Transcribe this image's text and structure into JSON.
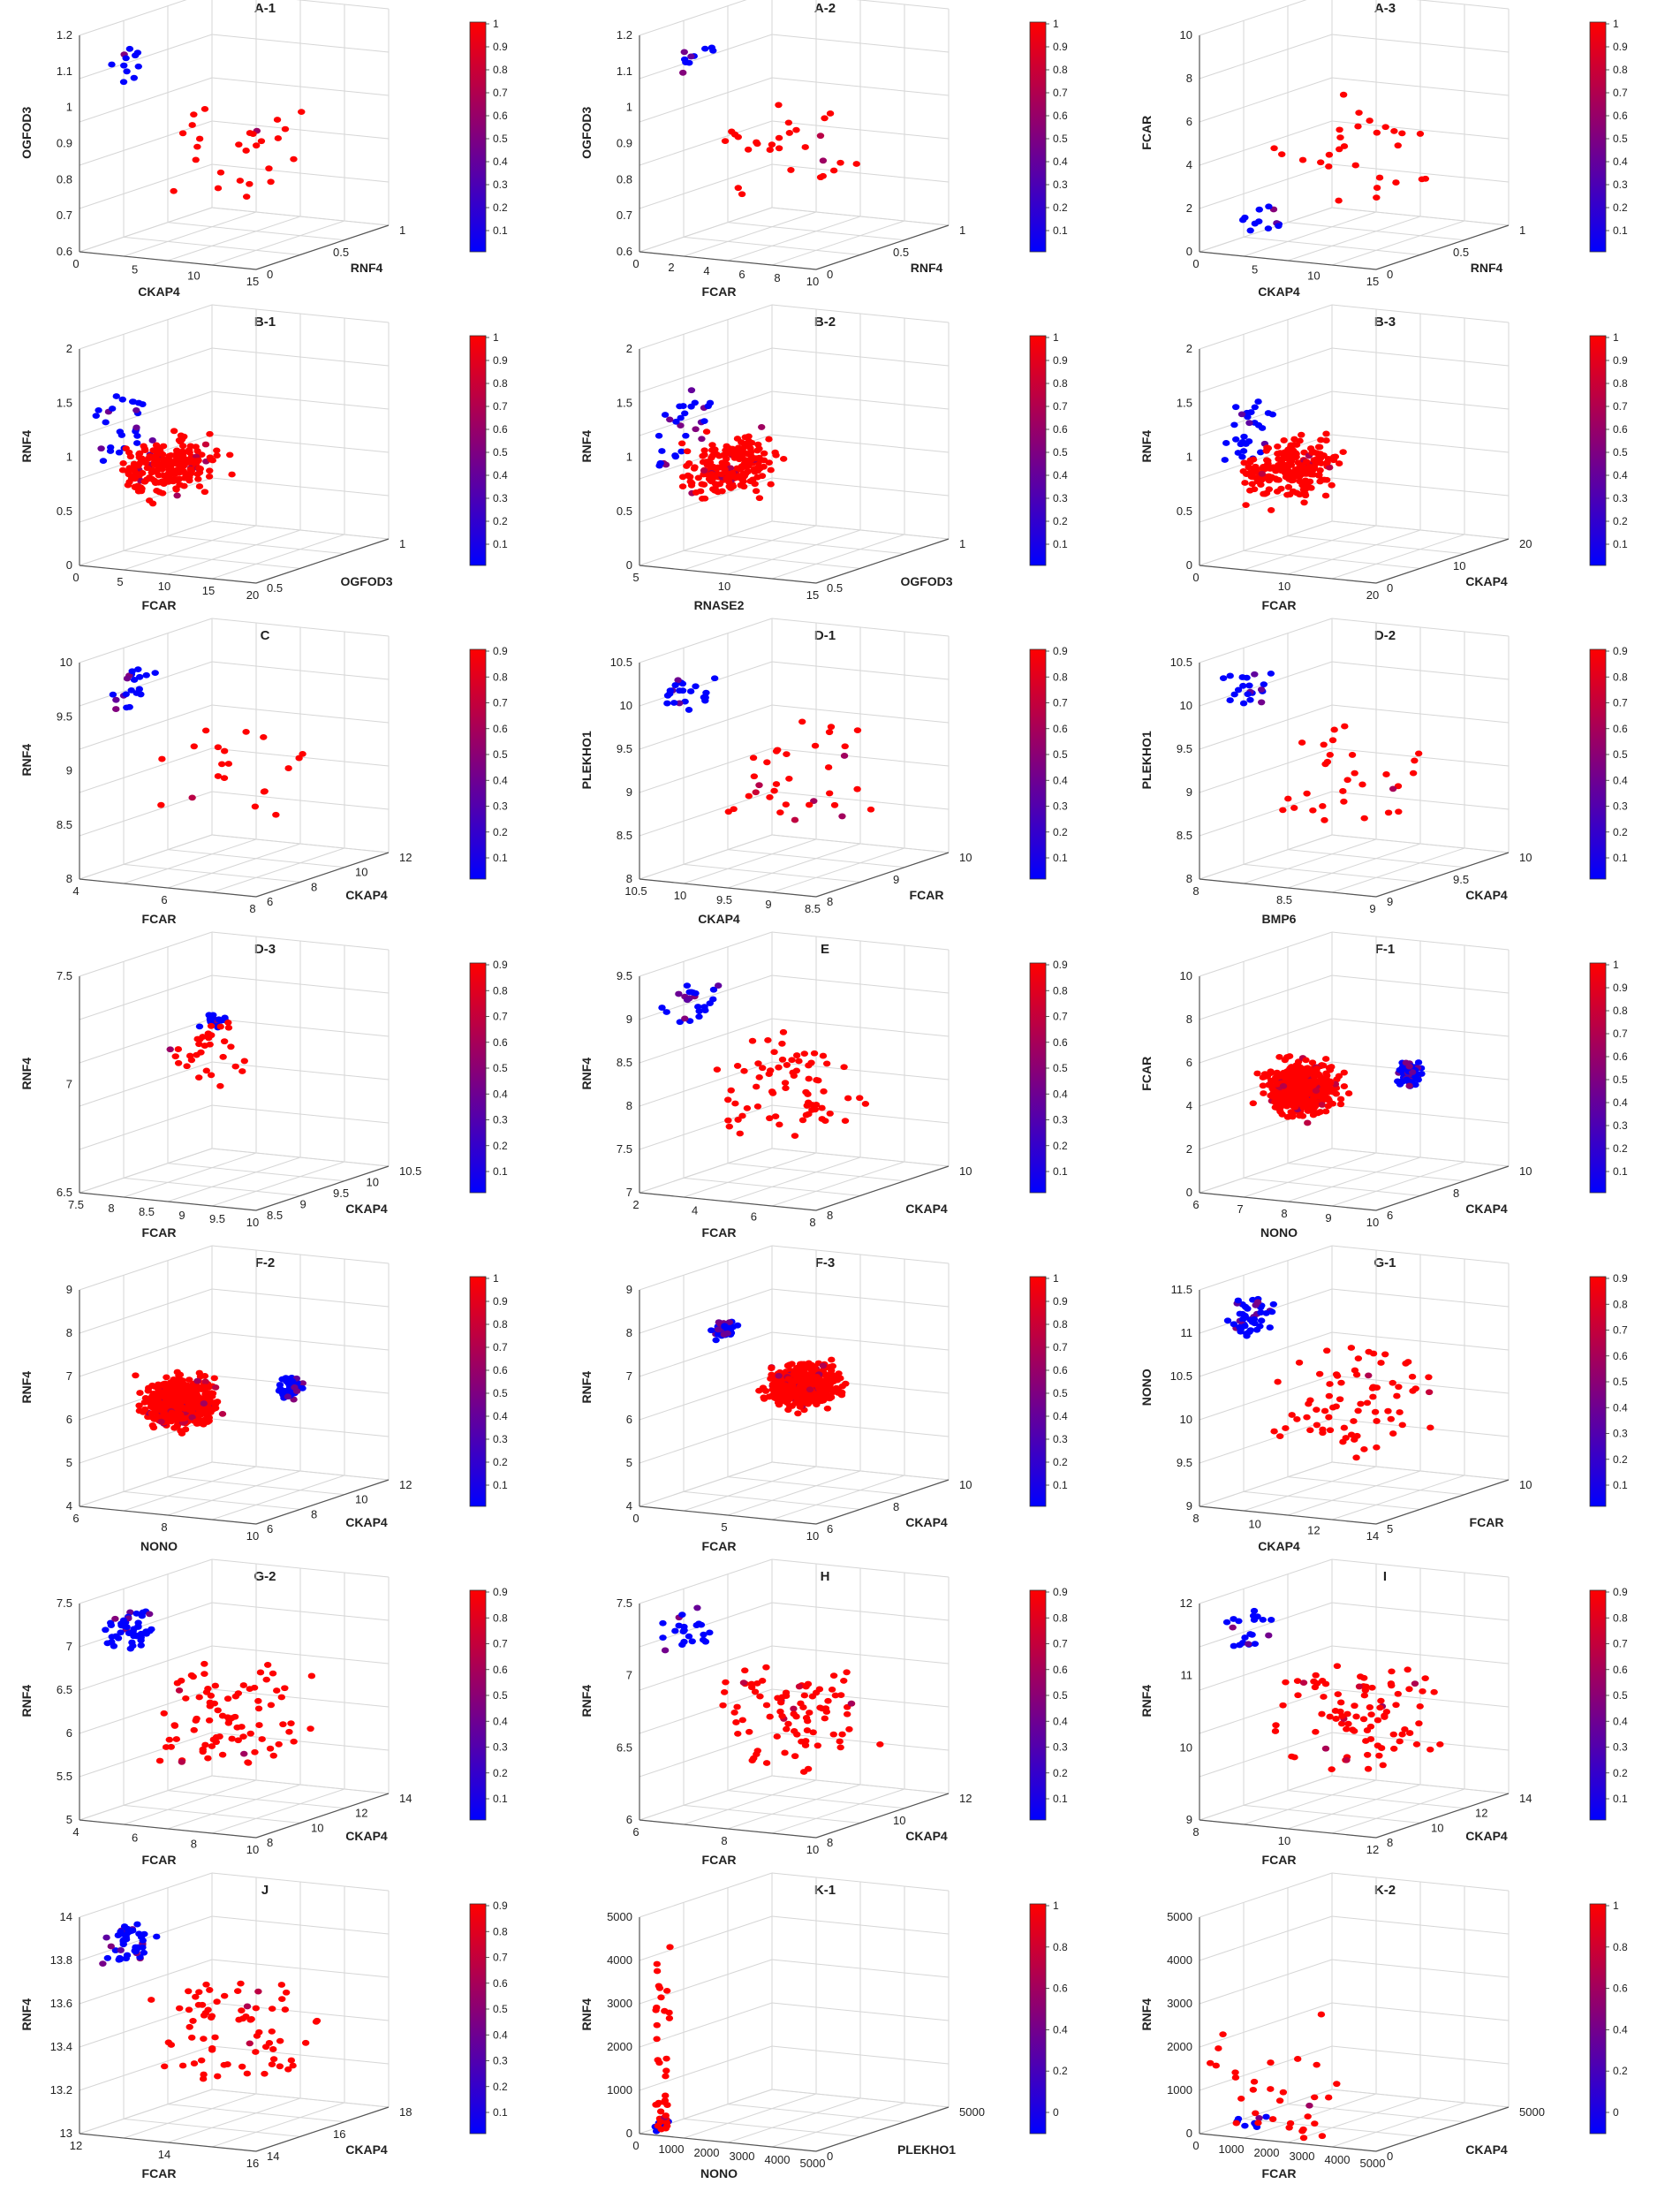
{
  "colors": {
    "low": "#0000ff",
    "high": "#ff0000",
    "grid": "#d6d6d6",
    "axis": "#555555"
  },
  "chart_data": [
    {
      "type": "scatter",
      "title": "A-1",
      "xlabel": "CKAP4",
      "ylabel": "RNF4",
      "zlabel": "OGFOD3",
      "orient": "normal",
      "xticks": [
        "0",
        "5",
        "10",
        "15"
      ],
      "yticks": [
        "0",
        "0.5",
        "1"
      ],
      "zticks": [
        "0.6",
        "0.7",
        "0.8",
        "0.9",
        "1",
        "1.1",
        "1.2"
      ],
      "cb_ticks": [
        "1",
        "0.9",
        "0.8",
        "0.7",
        "0.6",
        "0.5",
        "0.4",
        "0.3",
        "0.2",
        "0.1"
      ],
      "seed": 11,
      "n": 38,
      "blue_frac": 0.3,
      "pattern": "topleft"
    },
    {
      "type": "scatter",
      "title": "A-2",
      "xlabel": "FCAR",
      "ylabel": "RNF4",
      "zlabel": "OGFOD3",
      "orient": "normal",
      "xticks": [
        "0",
        "2",
        "4",
        "6",
        "8",
        "10"
      ],
      "yticks": [
        "0",
        "0.5",
        "1"
      ],
      "zticks": [
        "0.6",
        "0.7",
        "0.8",
        "0.9",
        "1",
        "1.1",
        "1.2"
      ],
      "cb_ticks": [
        "1",
        "0.9",
        "0.8",
        "0.7",
        "0.6",
        "0.5",
        "0.4",
        "0.3",
        "0.2",
        "0.1"
      ],
      "seed": 12,
      "n": 38,
      "blue_frac": 0.25,
      "pattern": "topleft"
    },
    {
      "type": "scatter",
      "title": "A-3",
      "xlabel": "CKAP4",
      "ylabel": "RNF4",
      "zlabel": "FCAR",
      "orient": "flip",
      "xticks": [
        "0",
        "5",
        "10",
        "15"
      ],
      "yticks": [
        "0",
        "0.5",
        "1"
      ],
      "zticks": [
        "0",
        "2",
        "4",
        "6",
        "8",
        "10"
      ],
      "cb_ticks": [
        "1",
        "0.9",
        "0.8",
        "0.7",
        "0.6",
        "0.5",
        "0.4",
        "0.3",
        "0.2",
        "0.1"
      ],
      "seed": 13,
      "n": 40,
      "blue_frac": 0.3,
      "pattern": "bottomleft"
    },
    {
      "type": "scatter",
      "title": "B-1",
      "xlabel": "FCAR",
      "ylabel": "OGFOD3",
      "zlabel": "RNF4",
      "orient": "flip",
      "xticks": [
        "0",
        "5",
        "10",
        "15",
        "20"
      ],
      "yticks": [
        "0.5",
        "1"
      ],
      "zticks": [
        "0",
        "0.5",
        "1",
        "1.5",
        "2"
      ],
      "cb_ticks": [
        "1",
        "0.9",
        "0.8",
        "0.7",
        "0.6",
        "0.5",
        "0.4",
        "0.3",
        "0.2",
        "0.1"
      ],
      "seed": 21,
      "n": 230,
      "blue_frac": 0.12,
      "pattern": "cloud"
    },
    {
      "type": "scatter",
      "title": "B-2",
      "xlabel": "RNASE2",
      "ylabel": "OGFOD3",
      "zlabel": "RNF4",
      "orient": "normal",
      "xticks": [
        "5",
        "10",
        "15"
      ],
      "yticks": [
        "0.5",
        "1"
      ],
      "zticks": [
        "0",
        "0.5",
        "1",
        "1.5",
        "2"
      ],
      "cb_ticks": [
        "1",
        "0.9",
        "0.8",
        "0.7",
        "0.6",
        "0.5",
        "0.4",
        "0.3",
        "0.2",
        "0.1"
      ],
      "seed": 22,
      "n": 230,
      "blue_frac": 0.12,
      "pattern": "cloud"
    },
    {
      "type": "scatter",
      "title": "B-3",
      "xlabel": "FCAR",
      "ylabel": "CKAP4",
      "zlabel": "RNF4",
      "orient": "normal",
      "xticks": [
        "0",
        "10",
        "20"
      ],
      "yticks": [
        "0",
        "10",
        "20"
      ],
      "zticks": [
        "0",
        "0.5",
        "1",
        "1.5",
        "2"
      ],
      "cb_ticks": [
        "1",
        "0.9",
        "0.8",
        "0.7",
        "0.6",
        "0.5",
        "0.4",
        "0.3",
        "0.2",
        "0.1"
      ],
      "seed": 23,
      "n": 230,
      "blue_frac": 0.12,
      "pattern": "cloud"
    },
    {
      "type": "scatter",
      "title": "C",
      "xlabel": "FCAR",
      "ylabel": "CKAP4",
      "zlabel": "RNF4",
      "orient": "normal",
      "xticks": [
        "4",
        "6",
        "8"
      ],
      "yticks": [
        "6",
        "8",
        "10",
        "12"
      ],
      "zticks": [
        "8",
        "8.5",
        "9",
        "9.5",
        "10"
      ],
      "cb_ticks": [
        "0.9",
        "0.8",
        "0.7",
        "0.6",
        "0.5",
        "0.4",
        "0.3",
        "0.2",
        "0.1"
      ],
      "seed": 31,
      "n": 40,
      "blue_frac": 0.5,
      "pattern": "topleft"
    },
    {
      "type": "scatter",
      "title": "D-1",
      "xlabel": "CKAP4",
      "ylabel": "FCAR",
      "zlabel": "PLEKHO1",
      "orient": "normal",
      "xticks": [
        "10.5",
        "10",
        "9.5",
        "9",
        "8.5"
      ],
      "yticks": [
        "8",
        "9",
        "10"
      ],
      "zticks": [
        "8",
        "8.5",
        "9",
        "9.5",
        "10",
        "10.5"
      ],
      "cb_ticks": [
        "0.9",
        "0.8",
        "0.7",
        "0.6",
        "0.5",
        "0.4",
        "0.3",
        "0.2",
        "0.1"
      ],
      "seed": 32,
      "n": 55,
      "blue_frac": 0.4,
      "pattern": "topleft"
    },
    {
      "type": "scatter",
      "title": "D-2",
      "xlabel": "BMP6",
      "ylabel": "CKAP4",
      "zlabel": "PLEKHO1",
      "orient": "flip",
      "xticks": [
        "8",
        "8.5",
        "9"
      ],
      "yticks": [
        "9",
        "9.5",
        "10"
      ],
      "zticks": [
        "8",
        "8.5",
        "9",
        "9.5",
        "10",
        "10.5"
      ],
      "cb_ticks": [
        "0.9",
        "0.8",
        "0.7",
        "0.6",
        "0.5",
        "0.4",
        "0.3",
        "0.2",
        "0.1"
      ],
      "seed": 33,
      "n": 50,
      "blue_frac": 0.4,
      "pattern": "topleft"
    },
    {
      "type": "scatter",
      "title": "D-3",
      "xlabel": "FCAR",
      "ylabel": "CKAP4",
      "zlabel": "RNF4",
      "orient": "normal",
      "xticks": [
        "7.5",
        "8",
        "8.5",
        "9",
        "9.5",
        "10"
      ],
      "yticks": [
        "8.5",
        "9",
        "9.5",
        "10",
        "10.5"
      ],
      "zticks": [
        "6.5",
        "7",
        "7.5"
      ],
      "cb_ticks": [
        "0.9",
        "0.8",
        "0.7",
        "0.6",
        "0.5",
        "0.4",
        "0.3",
        "0.2",
        "0.1"
      ],
      "seed": 41,
      "n": 50,
      "blue_frac": 0.35,
      "pattern": "center"
    },
    {
      "type": "scatter",
      "title": "E",
      "xlabel": "FCAR",
      "ylabel": "CKAP4",
      "zlabel": "RNF4",
      "orient": "normal",
      "xticks": [
        "2",
        "4",
        "6",
        "8"
      ],
      "yticks": [
        "8",
        "10"
      ],
      "zticks": [
        "7",
        "7.5",
        "8",
        "8.5",
        "9",
        "9.5"
      ],
      "cb_ticks": [
        "0.9",
        "0.8",
        "0.7",
        "0.6",
        "0.5",
        "0.4",
        "0.3",
        "0.2",
        "0.1"
      ],
      "seed": 42,
      "n": 95,
      "blue_frac": 0.25,
      "pattern": "topleft"
    },
    {
      "type": "scatter",
      "title": "F-1",
      "xlabel": "NONO",
      "ylabel": "CKAP4",
      "zlabel": "FCAR",
      "orient": "flip",
      "xticks": [
        "6",
        "7",
        "8",
        "9",
        "10"
      ],
      "yticks": [
        "6",
        "8",
        "10"
      ],
      "zticks": [
        "0",
        "2",
        "4",
        "6",
        "8",
        "10"
      ],
      "cb_ticks": [
        "1",
        "0.9",
        "0.8",
        "0.7",
        "0.6",
        "0.5",
        "0.4",
        "0.3",
        "0.2",
        "0.1"
      ],
      "seed": 43,
      "n": 650,
      "blue_frac": 0.1,
      "pattern": "dense_right"
    },
    {
      "type": "scatter",
      "title": "F-2",
      "xlabel": "NONO",
      "ylabel": "CKAP4",
      "zlabel": "RNF4",
      "orient": "flip",
      "xticks": [
        "6",
        "8",
        "10"
      ],
      "yticks": [
        "6",
        "8",
        "10",
        "12"
      ],
      "zticks": [
        "4",
        "5",
        "6",
        "7",
        "8",
        "9"
      ],
      "cb_ticks": [
        "1",
        "0.9",
        "0.8",
        "0.7",
        "0.6",
        "0.5",
        "0.4",
        "0.3",
        "0.2",
        "0.1"
      ],
      "seed": 51,
      "n": 650,
      "blue_frac": 0.08,
      "pattern": "dense_right"
    },
    {
      "type": "scatter",
      "title": "F-3",
      "xlabel": "FCAR",
      "ylabel": "CKAP4",
      "zlabel": "RNF4",
      "orient": "normal",
      "xticks": [
        "0",
        "5",
        "10"
      ],
      "yticks": [
        "6",
        "8",
        "10"
      ],
      "zticks": [
        "4",
        "5",
        "6",
        "7",
        "8",
        "9"
      ],
      "cb_ticks": [
        "1",
        "0.9",
        "0.8",
        "0.7",
        "0.6",
        "0.5",
        "0.4",
        "0.3",
        "0.2",
        "0.1"
      ],
      "seed": 52,
      "n": 650,
      "blue_frac": 0.08,
      "pattern": "dense_left"
    },
    {
      "type": "scatter",
      "title": "G-1",
      "xlabel": "CKAP4",
      "ylabel": "FCAR",
      "zlabel": "NONO",
      "orient": "normal",
      "xticks": [
        "8",
        "10",
        "12",
        "14"
      ],
      "yticks": [
        "5",
        "10"
      ],
      "zticks": [
        "9",
        "9.5",
        "10",
        "10.5",
        "11",
        "11.5"
      ],
      "cb_ticks": [
        "0.9",
        "0.8",
        "0.7",
        "0.6",
        "0.5",
        "0.4",
        "0.3",
        "0.2",
        "0.1"
      ],
      "seed": 53,
      "n": 120,
      "blue_frac": 0.4,
      "pattern": "topleft"
    },
    {
      "type": "scatter",
      "title": "G-2",
      "xlabel": "FCAR",
      "ylabel": "CKAP4",
      "zlabel": "RNF4",
      "orient": "normal",
      "xticks": [
        "4",
        "6",
        "8",
        "10"
      ],
      "yticks": [
        "8",
        "10",
        "12",
        "14"
      ],
      "zticks": [
        "5",
        "5.5",
        "6",
        "6.5",
        "7",
        "7.5"
      ],
      "cb_ticks": [
        "0.9",
        "0.8",
        "0.7",
        "0.6",
        "0.5",
        "0.4",
        "0.3",
        "0.2",
        "0.1"
      ],
      "seed": 61,
      "n": 130,
      "blue_frac": 0.35,
      "pattern": "topleft"
    },
    {
      "type": "scatter",
      "title": "H",
      "xlabel": "FCAR",
      "ylabel": "CKAP4",
      "zlabel": "RNF4",
      "orient": "normal",
      "xticks": [
        "6",
        "8",
        "10"
      ],
      "yticks": [
        "8",
        "10",
        "12"
      ],
      "zticks": [
        "6",
        "6.5",
        "7",
        "7.5"
      ],
      "cb_ticks": [
        "0.9",
        "0.8",
        "0.7",
        "0.6",
        "0.5",
        "0.4",
        "0.3",
        "0.2",
        "0.1"
      ],
      "seed": 62,
      "n": 110,
      "blue_frac": 0.2,
      "pattern": "topleft"
    },
    {
      "type": "scatter",
      "title": "I",
      "xlabel": "FCAR",
      "ylabel": "CKAP4",
      "zlabel": "RNF4",
      "orient": "normal",
      "xticks": [
        "8",
        "10",
        "12"
      ],
      "yticks": [
        "8",
        "10",
        "12",
        "14"
      ],
      "zticks": [
        "9",
        "10",
        "11",
        "12"
      ],
      "cb_ticks": [
        "0.9",
        "0.8",
        "0.7",
        "0.6",
        "0.5",
        "0.4",
        "0.3",
        "0.2",
        "0.1"
      ],
      "seed": 63,
      "n": 110,
      "blue_frac": 0.18,
      "pattern": "topleft"
    },
    {
      "type": "scatter",
      "title": "J",
      "xlabel": "FCAR",
      "ylabel": "CKAP4",
      "zlabel": "RNF4",
      "orient": "normal",
      "xticks": [
        "12",
        "14",
        "16"
      ],
      "yticks": [
        "14",
        "16",
        "18"
      ],
      "zticks": [
        "13",
        "13.2",
        "13.4",
        "13.6",
        "13.8",
        "14"
      ],
      "cb_ticks": [
        "0.9",
        "0.8",
        "0.7",
        "0.6",
        "0.5",
        "0.4",
        "0.3",
        "0.2",
        "0.1"
      ],
      "seed": 71,
      "n": 120,
      "blue_frac": 0.4,
      "pattern": "topleft"
    },
    {
      "type": "scatter",
      "title": "K-1",
      "xlabel": "NONO",
      "ylabel": "PLEKHO1",
      "zlabel": "RNF4",
      "orient": "normal",
      "xticks": [
        "0",
        "1000",
        "2000",
        "3000",
        "4000",
        "5000"
      ],
      "yticks": [
        "0",
        "5000"
      ],
      "zticks": [
        "0",
        "1000",
        "2000",
        "3000",
        "4000",
        "5000"
      ],
      "cb_ticks": [
        "1",
        "0.8",
        "0.6",
        "0.4",
        "0.2",
        "0"
      ],
      "seed": 72,
      "n": 45,
      "blue_frac": 0.15,
      "pattern": "column"
    },
    {
      "type": "scatter",
      "title": "K-2",
      "xlabel": "FCAR",
      "ylabel": "CKAP4",
      "zlabel": "RNF4",
      "orient": "normal",
      "xticks": [
        "0",
        "1000",
        "2000",
        "3000",
        "4000",
        "5000"
      ],
      "yticks": [
        "0",
        "5000"
      ],
      "zticks": [
        "0",
        "1000",
        "2000",
        "3000",
        "4000",
        "5000"
      ],
      "cb_ticks": [
        "1",
        "0.8",
        "0.6",
        "0.4",
        "0.2",
        "0"
      ],
      "seed": 73,
      "n": 40,
      "blue_frac": 0.2,
      "pattern": "corner"
    }
  ]
}
